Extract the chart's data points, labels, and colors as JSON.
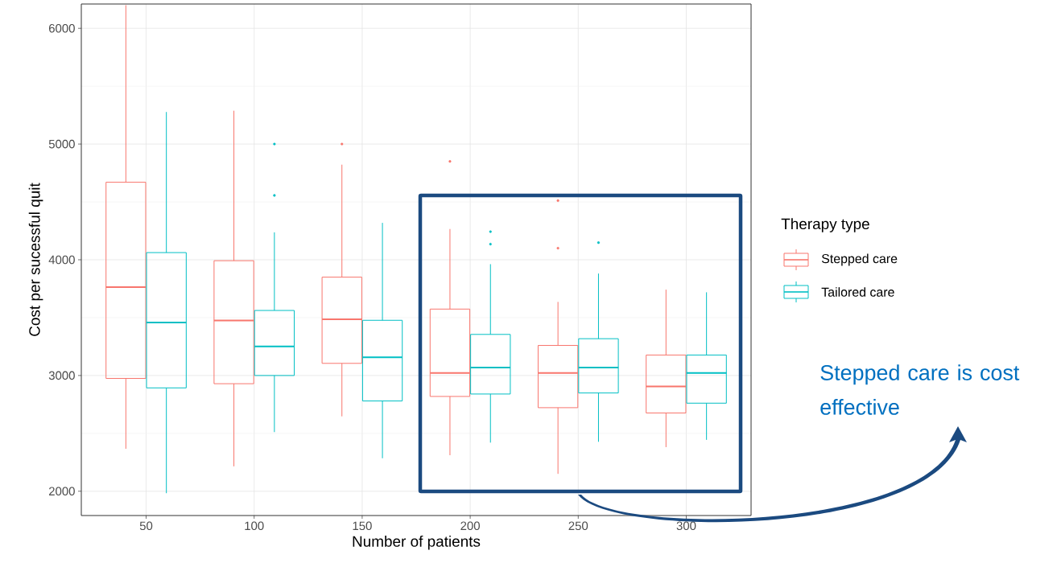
{
  "chart_data": {
    "type": "box",
    "xlabel": "Number of patients",
    "ylabel": "Cost per sucessful quit",
    "legend_title": "Therapy type",
    "categories": [
      "50",
      "100",
      "150",
      "200",
      "250",
      "300"
    ],
    "ylim": [
      1790,
      6210
    ],
    "yticks": [
      2000,
      3000,
      4000,
      5000,
      6000
    ],
    "grid": true,
    "legend": "right",
    "annotations": [
      "Stepped care is cost effective"
    ],
    "series": [
      {
        "name": "Stepped care",
        "color": "#f8766d",
        "boxes": [
          {
            "low": 2367,
            "q1": 2975,
            "median": 3763,
            "q3": 4670,
            "high": 6200
          },
          {
            "low": 2215,
            "q1": 2929,
            "median": 3475,
            "q3": 3992,
            "high": 5288
          },
          {
            "low": 2647,
            "q1": 3105,
            "median": 3486,
            "q3": 3850,
            "high": 4822,
            "outliers": [
              5000
            ]
          },
          {
            "low": 2311,
            "q1": 2819,
            "median": 3022,
            "q3": 3574,
            "high": 4266,
            "outliers": [
              4850
            ]
          },
          {
            "low": 2150,
            "q1": 2722,
            "median": 3022,
            "q3": 3260,
            "high": 3636,
            "outliers": [
              4511,
              4100
            ]
          },
          {
            "low": 2381,
            "q1": 2676,
            "median": 2905,
            "q3": 3177,
            "high": 3742
          }
        ]
      },
      {
        "name": "Tailored care",
        "color": "#00bfc4",
        "boxes": [
          {
            "low": 1983,
            "q1": 2893,
            "median": 3458,
            "q3": 4062,
            "high": 5277
          },
          {
            "low": 2511,
            "q1": 3000,
            "median": 3251,
            "q3": 3562,
            "high": 4237,
            "outliers": [
              5000,
              4556
            ]
          },
          {
            "low": 2285,
            "q1": 2780,
            "median": 3158,
            "q3": 3477,
            "high": 4319
          },
          {
            "low": 2420,
            "q1": 2840,
            "median": 3068,
            "q3": 3355,
            "high": 3962,
            "outliers": [
              4243,
              4135
            ]
          },
          {
            "low": 2427,
            "q1": 2849,
            "median": 3068,
            "q3": 3318,
            "high": 3881,
            "outliers": [
              4148
            ]
          },
          {
            "low": 2444,
            "q1": 2761,
            "median": 3022,
            "q3": 3177,
            "high": 3719
          }
        ]
      }
    ]
  }
}
